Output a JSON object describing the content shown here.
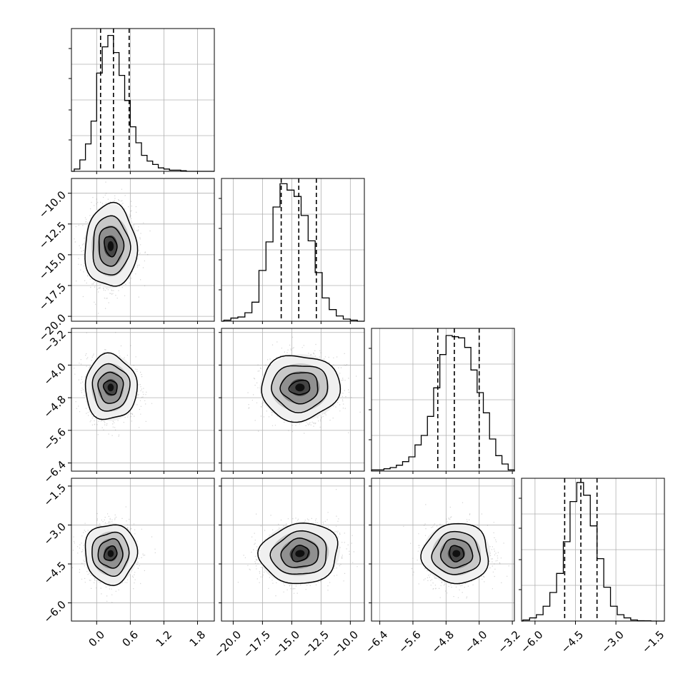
{
  "chart_data": {
    "type": "corner",
    "parameters": [
      {
        "xlim": [
          -0.45,
          2.1
        ],
        "ticks": [
          0.0,
          0.6,
          1.2,
          1.8
        ],
        "tick_labels": [
          "0.0",
          "0.6",
          "1.2",
          "1.8"
        ],
        "quantiles": [
          0.07,
          0.3,
          0.58
        ],
        "median": 0.3,
        "hist_bins": [
          -0.4,
          -0.3,
          -0.2,
          -0.1,
          0.0,
          0.1,
          0.2,
          0.3,
          0.4,
          0.5,
          0.6,
          0.7,
          0.8,
          0.9,
          1.0,
          1.1,
          1.2,
          1.3,
          1.4,
          1.5,
          1.6
        ],
        "hist_counts": [
          2,
          10,
          24,
          44,
          86,
          109,
          119,
          104,
          84,
          62,
          39,
          25,
          14,
          9,
          6,
          3,
          2,
          1,
          1,
          0.5
        ],
        "hist_ymax": 125
      },
      {
        "xlim": [
          -21.0,
          -8.8
        ],
        "ticks": [
          -20.0,
          -17.5,
          -15.0,
          -12.5,
          -10.0
        ],
        "tick_labels": [
          "−20.0",
          "−17.5",
          "−15.0",
          "−12.5",
          "−10.0"
        ],
        "quantiles": [
          -15.9,
          -14.4,
          -12.9
        ],
        "median": -14.4,
        "hist_bins": [
          -20.8,
          -20.2,
          -19.6,
          -19.0,
          -18.4,
          -17.8,
          -17.2,
          -16.6,
          -16.0,
          -15.4,
          -14.8,
          -14.2,
          -13.6,
          -13.0,
          -12.4,
          -11.8,
          -11.2,
          -10.6,
          -10.0,
          -9.4
        ],
        "hist_counts": [
          1,
          3,
          4,
          8,
          18,
          48,
          75,
          108,
          130,
          124,
          118,
          100,
          76,
          46,
          22,
          11,
          5,
          2,
          1
        ],
        "hist_ymax": 135
      },
      {
        "xlim": [
          -6.6,
          -3.15
        ],
        "ticks": [
          -6.4,
          -5.6,
          -4.8,
          -4.0,
          -3.2
        ],
        "tick_labels": [
          "−6.4",
          "−5.6",
          "−4.8",
          "−4.0",
          "−3.2"
        ],
        "quantiles": [
          -5.0,
          -4.6,
          -4.0
        ],
        "median": -4.6,
        "hist_bins": [
          -6.6,
          -6.45,
          -6.3,
          -6.15,
          -6.0,
          -5.85,
          -5.7,
          -5.55,
          -5.4,
          -5.25,
          -5.1,
          -4.95,
          -4.8,
          -4.65,
          -4.5,
          -4.35,
          -4.2,
          -4.05,
          -3.9,
          -3.75,
          -3.6,
          -3.45,
          -3.3,
          -3.15
        ],
        "hist_counts": [
          1,
          1,
          2,
          3,
          5,
          8,
          12,
          22,
          30,
          46,
          70,
          98,
          114,
          113,
          112,
          104,
          85,
          66,
          49,
          27,
          13,
          6,
          1
        ],
        "hist_ymax": 120
      },
      {
        "xlim": [
          -6.5,
          -1.2
        ],
        "ticks": [
          -6.0,
          -4.5,
          -3.0,
          -1.5
        ],
        "tick_labels": [
          "−6.0",
          "−4.5",
          "−3.0",
          "−1.5"
        ],
        "quantiles": [
          -4.9,
          -4.3,
          -3.7
        ],
        "median": -4.3,
        "hist_bins": [
          -6.45,
          -6.2,
          -5.95,
          -5.7,
          -5.45,
          -5.2,
          -4.95,
          -4.7,
          -4.45,
          -4.2,
          -3.95,
          -3.7,
          -3.45,
          -3.2,
          -2.95,
          -2.7,
          -2.45,
          -2.2,
          -1.95,
          -1.7
        ],
        "hist_counts": [
          1,
          3,
          6,
          14,
          27,
          45,
          75,
          113,
          131,
          119,
          90,
          59,
          32,
          14,
          6,
          3,
          1,
          0.3,
          0.2
        ],
        "hist_ymax": 135
      }
    ],
    "row_ylims": [
      null,
      [
        -20.4,
        -8.8
      ],
      [
        -6.6,
        -3.1
      ],
      [
        -6.7,
        -1.2
      ]
    ],
    "row_ticks": [
      [],
      [
        -20.0,
        -17.5,
        -15.0,
        -12.5,
        -10.0
      ],
      [
        -6.4,
        -5.6,
        -4.8,
        -4.0,
        -3.2
      ],
      [
        -6.0,
        -4.5,
        -3.0,
        -1.5
      ]
    ],
    "row_tick_labels": [
      [],
      [
        "−20.0",
        "−17.5",
        "−15.0",
        "−12.5",
        "−10.0"
      ],
      [
        "−6.4",
        "−5.6",
        "−4.8",
        "−4.0",
        "−3.2"
      ],
      [
        "−6.0",
        "−4.5",
        "−3.0",
        "−1.5"
      ]
    ],
    "pairs": [
      {
        "row": 1,
        "col": 0,
        "center": [
          0.25,
          -14.3
        ],
        "spread": [
          0.22,
          1.6
        ],
        "rho": 0.0
      },
      {
        "row": 2,
        "col": 0,
        "center": [
          0.25,
          -4.55
        ],
        "spread": [
          0.22,
          0.38
        ],
        "rho": 0.0
      },
      {
        "row": 2,
        "col": 1,
        "center": [
          -14.3,
          -4.55
        ],
        "spread": [
          1.6,
          0.38
        ],
        "rho": 0.05
      },
      {
        "row": 3,
        "col": 0,
        "center": [
          0.25,
          -4.1
        ],
        "spread": [
          0.22,
          0.55
        ],
        "rho": 0.0
      },
      {
        "row": 3,
        "col": 1,
        "center": [
          -14.3,
          -4.1
        ],
        "spread": [
          1.6,
          0.55
        ],
        "rho": 0.15
      },
      {
        "row": 3,
        "col": 2,
        "center": [
          -4.55,
          -4.1
        ],
        "spread": [
          0.38,
          0.55
        ],
        "rho": 0.05
      }
    ],
    "grid": true,
    "colors": {
      "line": "#000000",
      "grid": "#b0b0b0",
      "points": "#808080"
    }
  }
}
